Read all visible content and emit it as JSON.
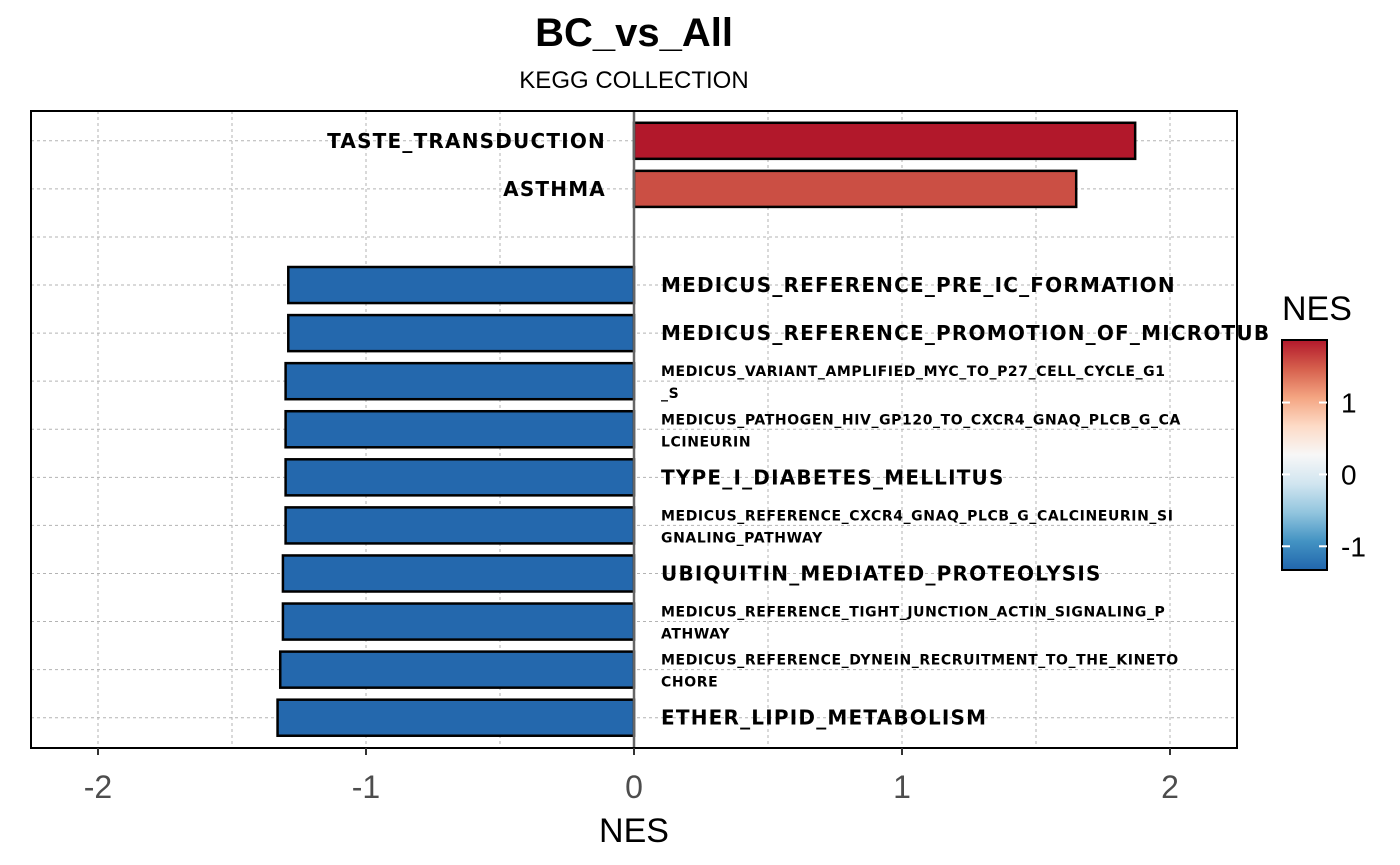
{
  "chart_data": {
    "type": "bar",
    "orientation": "horizontal",
    "title": "BC_vs_All",
    "subtitle": "KEGG COLLECTION",
    "xlabel": "NES",
    "xlim": [
      -2.25,
      2.25
    ],
    "xticks": [
      -2,
      -1,
      0,
      1,
      2
    ],
    "xtick_labels": [
      "-2",
      "-1",
      "0",
      "1",
      "2"
    ],
    "grid": true,
    "categories": [
      "TASTE_TRANSDUCTION",
      "ASTHMA",
      "",
      "MEDICUS_REFERENCE_PRE_IC_FORMATION",
      "MEDICUS_REFERENCE_PROMOTION_OF_MICROTUB",
      "MEDICUS_VARIANT_AMPLIFIED_MYC_TO_P27_CELL_CYCLE_G1_S",
      "MEDICUS_PATHOGEN_HIV_GP120_TO_CXCR4_GNAQ_PLCB_G_CALCINEURIN",
      "TYPE_I_DIABETES_MELLITUS",
      "MEDICUS_REFERENCE_CXCR4_GNAQ_PLCB_G_CALCINEURIN_SIGNALING_PATHWAY",
      "UBIQUITIN_MEDIATED_PROTEOLYSIS",
      "MEDICUS_REFERENCE_TIGHT_JUNCTION_ACTIN_SIGNALING_PATHWAY",
      "MEDICUS_REFERENCE_DYNEIN_RECRUITMENT_TO_THE_KINETOCHORE",
      "ETHER_LIPID_METABOLISM"
    ],
    "label_lines": [
      [
        "TASTE_TRANSDUCTION"
      ],
      [
        "ASTHMA"
      ],
      [],
      [
        "MEDICUS_REFERENCE_PRE_IC_FORMATION"
      ],
      [
        "MEDICUS_REFERENCE_PROMOTION_OF_MICROTUB"
      ],
      [
        "MEDICUS_VARIANT_AMPLIFIED_MYC_TO_P27_CELL_CYCLE_G1",
        "_S"
      ],
      [
        "MEDICUS_PATHOGEN_HIV_GP120_TO_CXCR4_GNAQ_PLCB_G_CA",
        "LCINEURIN"
      ],
      [
        "TYPE_I_DIABETES_MELLITUS"
      ],
      [
        "MEDICUS_REFERENCE_CXCR4_GNAQ_PLCB_G_CALCINEURIN_SI",
        "GNALING_PATHWAY"
      ],
      [
        "UBIQUITIN_MEDIATED_PROTEOLYSIS"
      ],
      [
        "MEDICUS_REFERENCE_TIGHT_JUNCTION_ACTIN_SIGNALING_P",
        "ATHWAY"
      ],
      [
        "MEDICUS_REFERENCE_DYNEIN_RECRUITMENT_TO_THE_KINETO",
        "CHORE"
      ],
      [
        "ETHER_LIPID_METABOLISM"
      ]
    ],
    "values": [
      1.87,
      1.65,
      null,
      -1.29,
      -1.29,
      -1.3,
      -1.3,
      -1.3,
      -1.3,
      -1.31,
      -1.31,
      -1.32,
      -1.33
    ],
    "colors": [
      "#B2182B",
      "#CB4F44",
      null,
      "#2468AD",
      "#2468AD",
      "#2468AD",
      "#2468AD",
      "#2468AD",
      "#2468AD",
      "#2468AD",
      "#2468AD",
      "#2468AD",
      "#2468AD"
    ],
    "legend": {
      "title": "NES",
      "position": "right",
      "ticks": [
        1,
        0,
        -1
      ],
      "tick_labels": [
        "1",
        "0",
        "-1"
      ],
      "range": [
        -1.33,
        1.87
      ],
      "colors_low_to_high": [
        "#2166AC",
        "#4393C3",
        "#92C5DE",
        "#D1E5F0",
        "#F7F7F7",
        "#FDDBC7",
        "#F4A582",
        "#D6604D",
        "#B2182B"
      ]
    }
  }
}
